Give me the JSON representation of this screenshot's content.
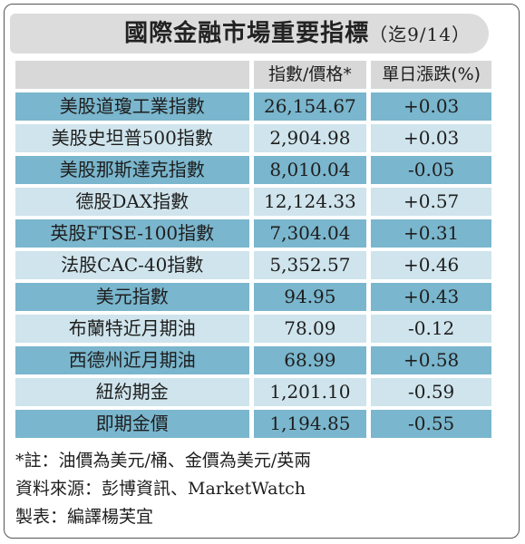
{
  "title": {
    "main": "國際金融市場重要指標",
    "date": "（迄9/14）"
  },
  "header": {
    "col_name": "",
    "col_price": "指數/價格*",
    "col_change": "單日漲跌(%)"
  },
  "rows": [
    {
      "name": "美股道瓊工業指數",
      "price": "26,154.67",
      "change": "+0.03"
    },
    {
      "name": "美股史坦普500指數",
      "price": "2,904.98",
      "change": "+0.03"
    },
    {
      "name": "美股那斯達克指數",
      "price": "8,010.04",
      "change": "-0.05"
    },
    {
      "name": "德股DAX指數",
      "price": "12,124.33",
      "change": "+0.57"
    },
    {
      "name": "英股FTSE-100指數",
      "price": "7,304.04",
      "change": "+0.31"
    },
    {
      "name": "法股CAC-40指數",
      "price": "5,352.57",
      "change": "+0.46"
    },
    {
      "name": "美元指數",
      "price": "94.95",
      "change": "+0.43"
    },
    {
      "name": "布蘭特近月期油",
      "price": "78.09",
      "change": "-0.12"
    },
    {
      "name": "西德州近月期油",
      "price": "68.99",
      "change": "+0.58"
    },
    {
      "name": "紐約期金",
      "price": "1,201.10",
      "change": "-0.59"
    },
    {
      "name": "即期金價",
      "price": "1,194.85",
      "change": "-0.55"
    }
  ],
  "notes": {
    "footnote": "*註：油價為美元/桶、金價為美元/英兩",
    "source": "資料來源：彭博資訊、MarketWatch",
    "editor": "製表：編譯楊芙宜"
  },
  "colors": {
    "row_dark": "#7ab6cd",
    "row_light": "#cfe4ec",
    "header": "#d8d8d8"
  }
}
